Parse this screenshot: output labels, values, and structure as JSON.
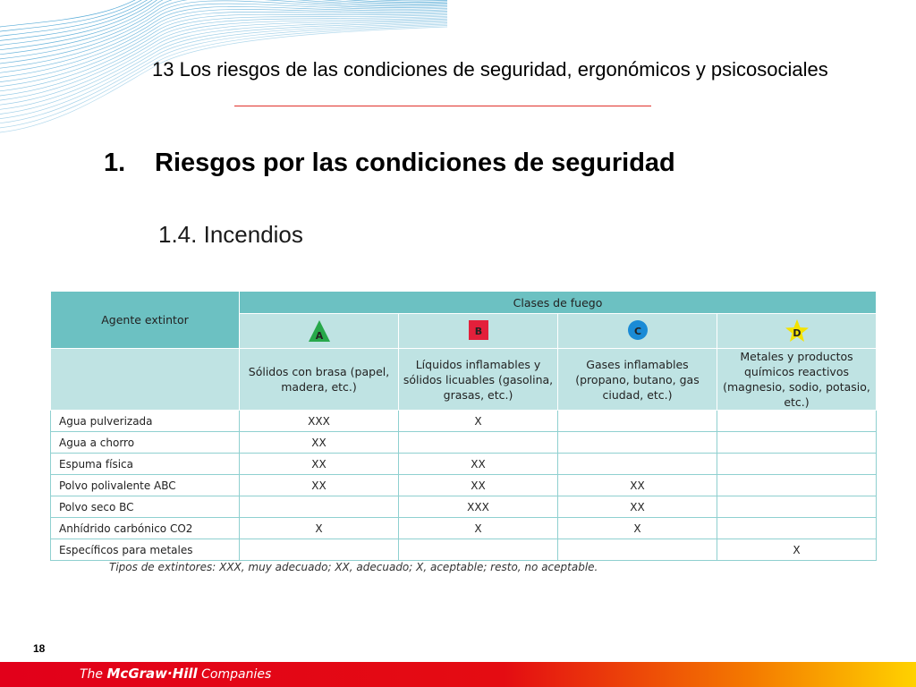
{
  "slide": {
    "header": "13 Los riesgos de las condiciones de seguridad, ergonómicos y psicosociales",
    "section_number": "1.",
    "section_title": "Riesgos por las condiciones de seguridad",
    "subsection_title": "1.4. Incendios",
    "page_number": "18"
  },
  "table": {
    "agent_header": "Agente extintor",
    "classes_header": "Clases de fuego",
    "classes": [
      {
        "letter": "A",
        "shape": "triangle",
        "color": "#27a84a",
        "description": "Sólidos con brasa (papel, madera, etc.)"
      },
      {
        "letter": "B",
        "shape": "square",
        "color": "#e3203b",
        "description": "Líquidos inflamables y sólidos licuables (gasolina, grasas, etc.)"
      },
      {
        "letter": "C",
        "shape": "circle",
        "color": "#1a8bd6",
        "description": "Gases inflamables (propano, butano, gas ciudad, etc.)"
      },
      {
        "letter": "D",
        "shape": "star",
        "color": "#f4e300",
        "description": "Metales y productos químicos reactivos (magnesio, sodio, potasio, etc.)"
      }
    ],
    "rows": [
      {
        "agent": "Agua pulverizada",
        "values": [
          "XXX",
          "X",
          "",
          ""
        ]
      },
      {
        "agent": "Agua a chorro",
        "values": [
          "XX",
          "",
          "",
          ""
        ]
      },
      {
        "agent": "Espuma física",
        "values": [
          "XX",
          "XX",
          "",
          ""
        ]
      },
      {
        "agent": "Polvo polivalente ABC",
        "values": [
          "XX",
          "XX",
          "XX",
          ""
        ]
      },
      {
        "agent": "Polvo seco BC",
        "values": [
          "",
          "XXX",
          "XX",
          ""
        ]
      },
      {
        "agent": "Anhídrido carbónico CO2",
        "values": [
          "X",
          "X",
          "X",
          ""
        ]
      },
      {
        "agent": "Específicos para metales",
        "values": [
          "",
          "",
          "",
          "X"
        ]
      }
    ],
    "legend": "Tipos de extintores: XXX, muy adecuado; XX, adecuado; X, aceptable; resto, no aceptable."
  },
  "footer": {
    "brand_prefix": "The ",
    "brand_name": "McGraw·Hill",
    "brand_suffix": " Companies",
    "colors": {
      "start": "#e2001a",
      "end": "#ffd200"
    }
  },
  "decor": {
    "wave_color": "#1f8fc9"
  }
}
